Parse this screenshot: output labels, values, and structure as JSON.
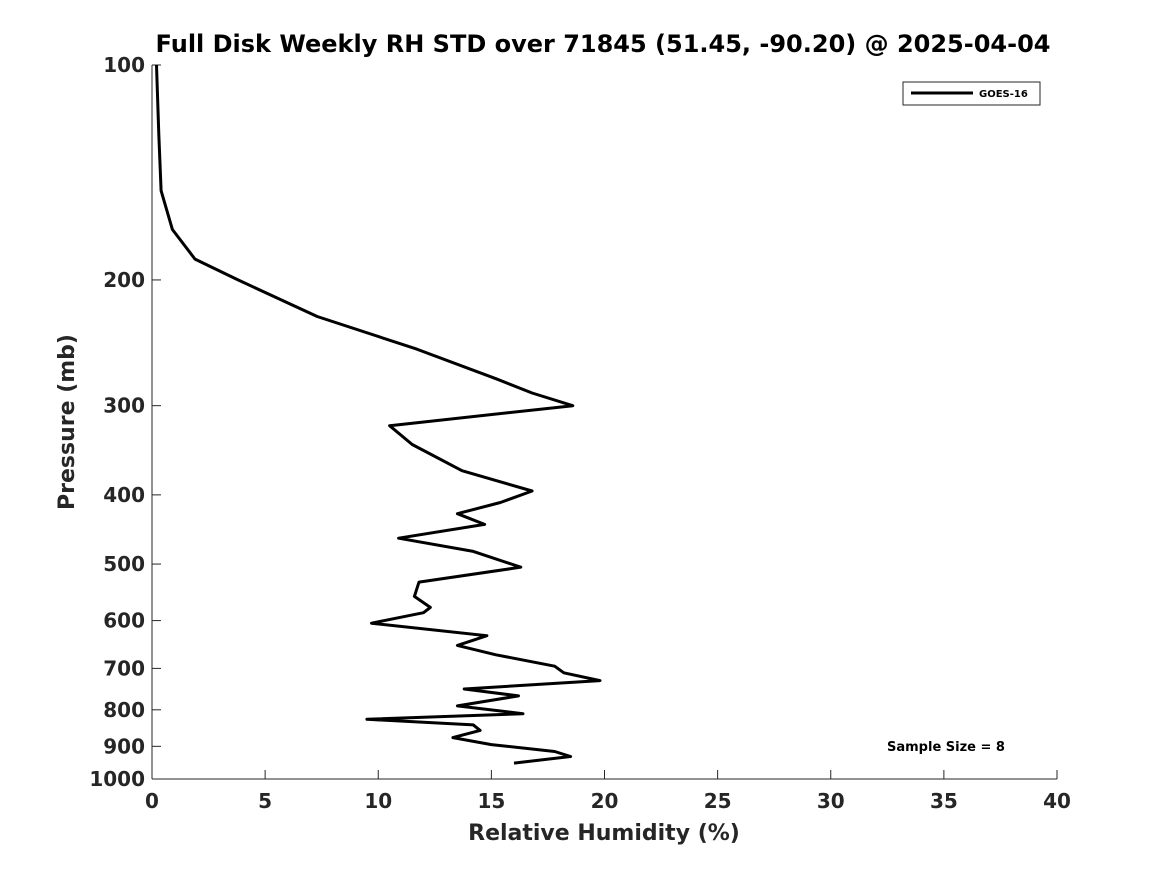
{
  "chart_data": {
    "type": "line",
    "title": "Full Disk Weekly RH STD over 71845 (51.45, -90.20) @ 2025-04-04",
    "xlabel": "Relative Humidity (%)",
    "ylabel": "Pressure (mb)",
    "xlim": [
      0,
      40
    ],
    "ylim": [
      100,
      1000
    ],
    "yscale": "log",
    "y_reversed": true,
    "x_ticks": [
      0,
      5,
      10,
      15,
      20,
      25,
      30,
      35,
      40
    ],
    "x_tick_labels": [
      "0",
      "5",
      "10",
      "15",
      "20",
      "25",
      "30",
      "35",
      "40"
    ],
    "y_ticks": [
      100,
      200,
      300,
      400,
      500,
      600,
      700,
      800,
      900,
      1000
    ],
    "y_tick_labels": [
      "100",
      "200",
      "300",
      "400",
      "500",
      "600",
      "700",
      "800",
      "900",
      "1000"
    ],
    "grid": false,
    "legend_position": "top-right",
    "series": [
      {
        "name": "GOES-16",
        "color": "#000000",
        "points": [
          [
            0.2,
            100
          ],
          [
            0.3,
            125
          ],
          [
            0.4,
            150
          ],
          [
            0.9,
            170
          ],
          [
            1.9,
            187
          ],
          [
            3.8,
            200
          ],
          [
            7.3,
            225
          ],
          [
            11.7,
            250
          ],
          [
            15.2,
            275
          ],
          [
            16.8,
            288
          ],
          [
            18.6,
            300
          ],
          [
            10.5,
            320
          ],
          [
            11.5,
            340
          ],
          [
            13.7,
            370
          ],
          [
            16.8,
            395
          ],
          [
            15.4,
            410
          ],
          [
            13.5,
            425
          ],
          [
            14.7,
            440
          ],
          [
            10.9,
            460
          ],
          [
            14.2,
            480
          ],
          [
            16.3,
            505
          ],
          [
            11.8,
            530
          ],
          [
            11.6,
            555
          ],
          [
            12.3,
            575
          ],
          [
            12.0,
            585
          ],
          [
            9.7,
            605
          ],
          [
            14.8,
            630
          ],
          [
            13.5,
            650
          ],
          [
            15.2,
            670
          ],
          [
            17.8,
            695
          ],
          [
            18.2,
            710
          ],
          [
            19.8,
            728
          ],
          [
            13.8,
            748
          ],
          [
            16.2,
            765
          ],
          [
            13.5,
            790
          ],
          [
            16.4,
            810
          ],
          [
            9.5,
            825
          ],
          [
            14.2,
            840
          ],
          [
            14.5,
            855
          ],
          [
            13.3,
            875
          ],
          [
            15.0,
            895
          ],
          [
            17.8,
            915
          ],
          [
            18.5,
            930
          ],
          [
            16.0,
            950
          ]
        ]
      }
    ],
    "annotations": [
      {
        "text": "Sample Size = 8",
        "x": 35,
        "y": 905
      }
    ]
  }
}
